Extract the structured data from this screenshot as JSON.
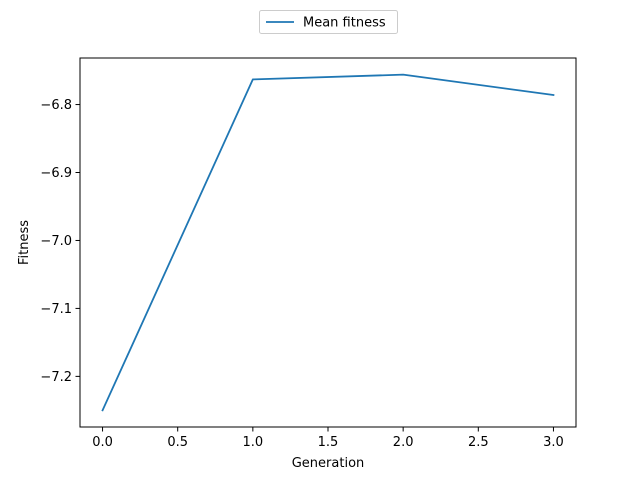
{
  "chart_data": {
    "type": "line",
    "xlabel": "Generation",
    "ylabel": "Fitness",
    "xlim": [
      -0.15,
      3.15
    ],
    "ylim": [
      -7.2745,
      -6.7315
    ],
    "xticks": [
      0.0,
      0.5,
      1.0,
      1.5,
      2.0,
      2.5,
      3.0
    ],
    "xtick_labels": [
      "0.0",
      "0.5",
      "1.0",
      "1.5",
      "2.0",
      "2.5",
      "3.0"
    ],
    "yticks": [
      -7.2,
      -7.1,
      -7.0,
      -6.9,
      -6.8
    ],
    "ytick_labels": [
      "−7.2",
      "−7.1",
      "−7.0",
      "−6.9",
      "−6.8"
    ],
    "grid": false,
    "legend_position": "top-center (outside, above plot)",
    "series": [
      {
        "name": "Mean fitness",
        "color": "#1f77b4",
        "x": [
          0,
          1,
          2,
          3
        ],
        "y": [
          -7.25,
          -6.763,
          -6.756,
          -6.786
        ]
      }
    ]
  }
}
